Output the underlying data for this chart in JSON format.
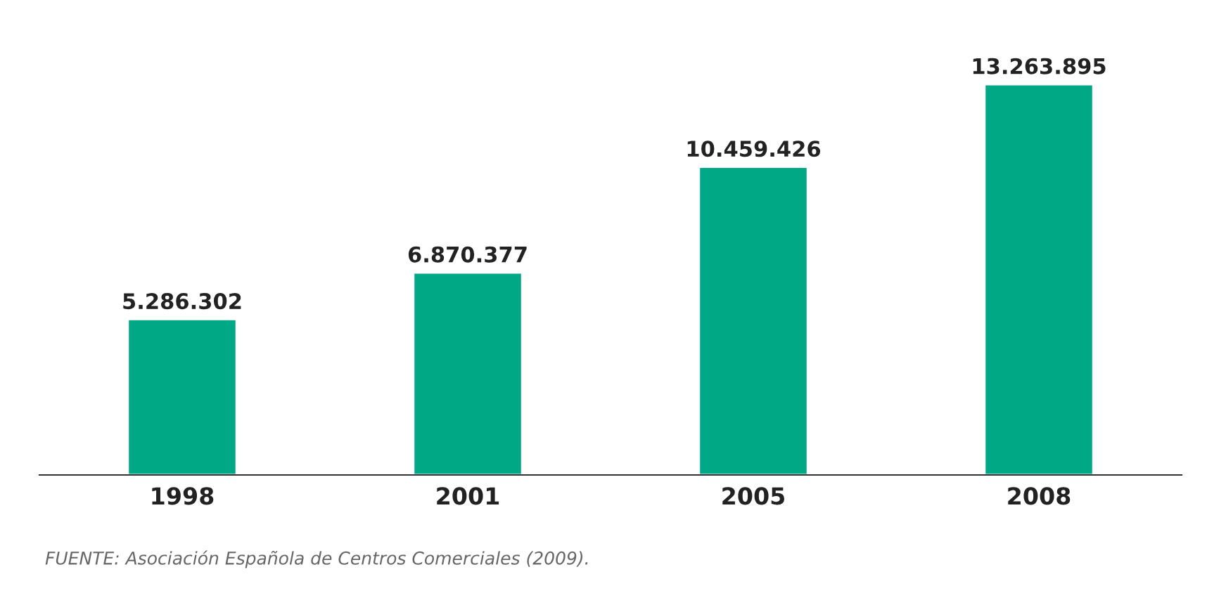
{
  "chart_data": {
    "type": "bar",
    "categories": [
      "1998",
      "2001",
      "2005",
      "2008"
    ],
    "values": [
      5286302,
      6870377,
      10459426,
      13263895
    ],
    "value_labels": [
      "5.286.302",
      "6.870.377",
      "10.459.426",
      "13.263.895"
    ],
    "color": "#00a886",
    "grid": false,
    "legend": false,
    "annotations": [
      "FUENTE: Asociación Española de Centros Comerciales (2009)."
    ]
  }
}
